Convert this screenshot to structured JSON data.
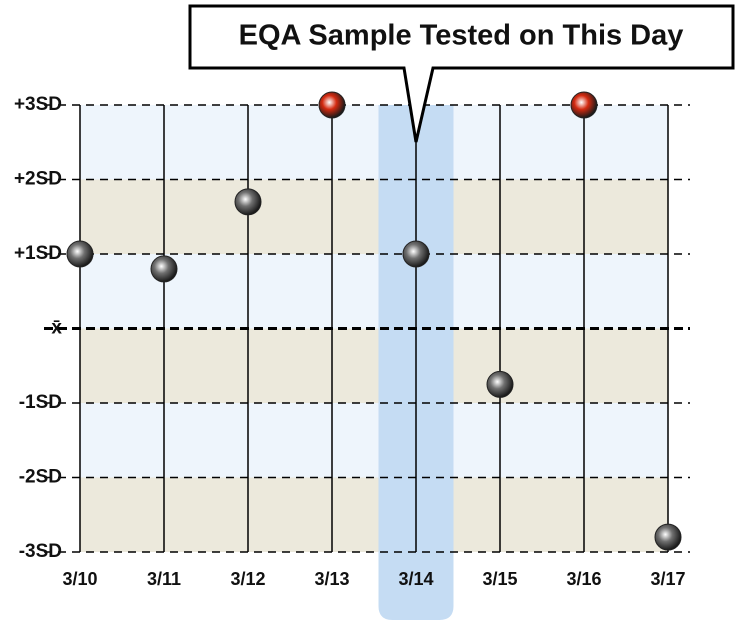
{
  "chart_data": {
    "type": "scatter",
    "categories": [
      "3/10",
      "3/11",
      "3/12",
      "3/13",
      "3/14",
      "3/15",
      "3/16",
      "3/17"
    ],
    "values": [
      1.0,
      0.8,
      1.7,
      3.0,
      1.0,
      -0.75,
      3.0,
      -2.8
    ],
    "point_colors": [
      "#707070",
      "#707070",
      "#707070",
      "#d42a10",
      "#707070",
      "#707070",
      "#d42a10",
      "#707070"
    ],
    "ylim": [
      -3,
      3
    ],
    "yticks": [
      {
        "value": 3,
        "label": "+3SD"
      },
      {
        "value": 2,
        "label": "+2SD"
      },
      {
        "value": 1,
        "label": "+1SD"
      },
      {
        "value": 0,
        "label": "x̄"
      },
      {
        "value": -1,
        "label": "-1SD"
      },
      {
        "value": -2,
        "label": "-2SD"
      },
      {
        "value": -3,
        "label": "-3SD"
      }
    ],
    "band_colors": [
      "#eef5fc",
      "#ece9dc"
    ],
    "annotation": {
      "text": "EQA Sample Tested on This Day",
      "x": "3/14",
      "color": "#c5dcf3"
    }
  }
}
